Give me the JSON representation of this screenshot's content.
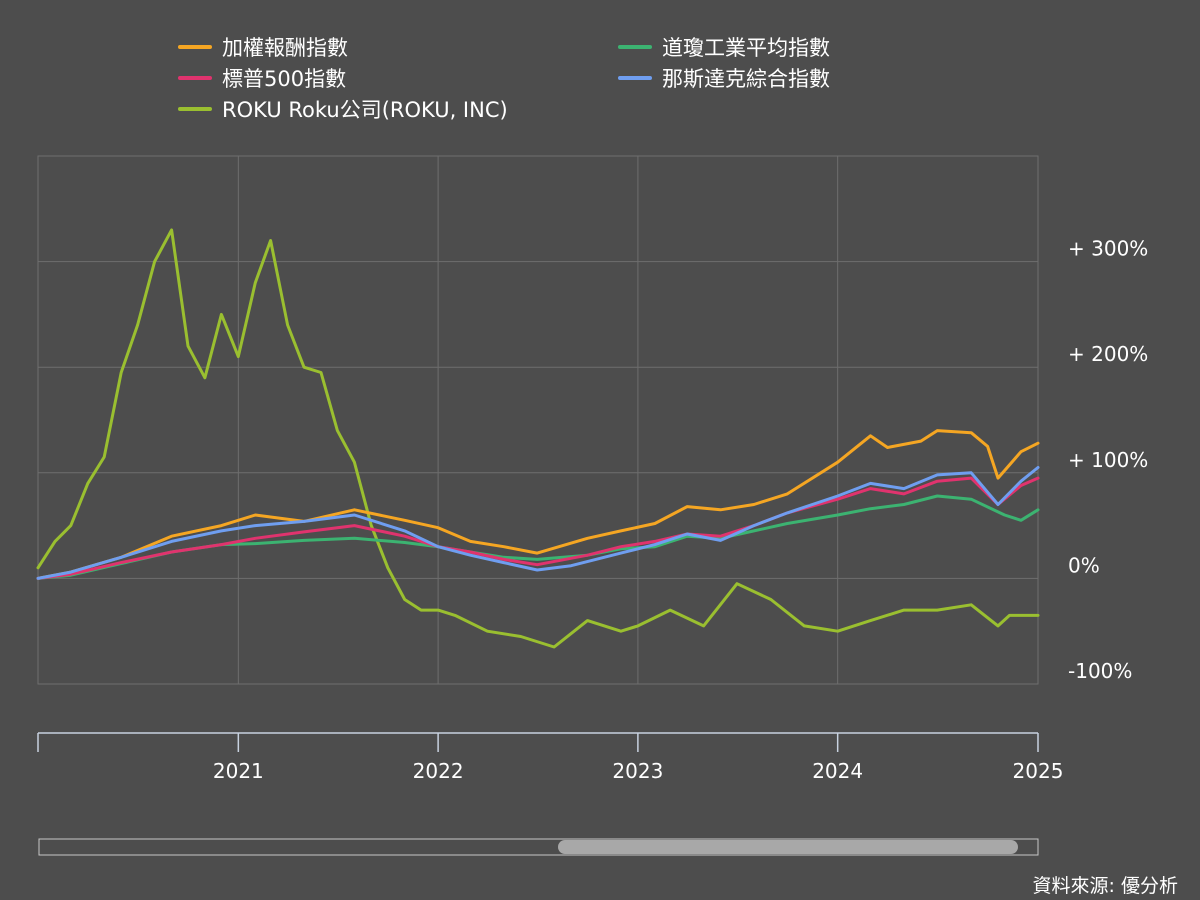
{
  "source_label": "資料來源: 優分析",
  "chart_data": {
    "type": "line",
    "x_range": [
      "2020-01-01",
      "2025-01-01"
    ],
    "x_ticks": [
      "2021",
      "2022",
      "2023",
      "2024",
      "2025"
    ],
    "y_ticks": [
      {
        "value": 300,
        "label": "+ 300%"
      },
      {
        "value": 200,
        "label": "+ 200%"
      },
      {
        "value": 100,
        "label": "+ 100%"
      },
      {
        "value": 0,
        "label": "0%"
      },
      {
        "value": -100,
        "label": "-100%"
      }
    ],
    "ylim": [
      -100,
      400
    ],
    "grid": true,
    "legend_position": "top",
    "scrollbar": {
      "start": 0.52,
      "end": 0.98
    },
    "series": [
      {
        "name": "加權報酬指數",
        "color": "#f5a623",
        "points": [
          [
            "2020-01-01",
            0
          ],
          [
            "2020-03-01",
            6
          ],
          [
            "2020-06-01",
            20
          ],
          [
            "2020-09-01",
            40
          ],
          [
            "2020-12-01",
            50
          ],
          [
            "2021-02-01",
            60
          ],
          [
            "2021-05-01",
            54
          ],
          [
            "2021-08-01",
            65
          ],
          [
            "2021-11-01",
            55
          ],
          [
            "2022-01-01",
            48
          ],
          [
            "2022-03-01",
            35
          ],
          [
            "2022-05-01",
            30
          ],
          [
            "2022-07-01",
            24
          ],
          [
            "2022-10-01",
            38
          ],
          [
            "2022-12-01",
            45
          ],
          [
            "2023-02-01",
            52
          ],
          [
            "2023-04-01",
            68
          ],
          [
            "2023-06-01",
            65
          ],
          [
            "2023-08-01",
            70
          ],
          [
            "2023-10-01",
            80
          ],
          [
            "2024-01-01",
            110
          ],
          [
            "2024-03-01",
            135
          ],
          [
            "2024-04-01",
            124
          ],
          [
            "2024-06-01",
            130
          ],
          [
            "2024-07-01",
            140
          ],
          [
            "2024-09-01",
            138
          ],
          [
            "2024-10-01",
            125
          ],
          [
            "2024-10-20",
            95
          ],
          [
            "2024-12-01",
            120
          ],
          [
            "2025-01-01",
            128
          ]
        ]
      },
      {
        "name": "道瓊工業平均指數",
        "color": "#3cb371",
        "points": [
          [
            "2020-01-01",
            0
          ],
          [
            "2020-03-01",
            3
          ],
          [
            "2020-06-01",
            14
          ],
          [
            "2020-09-01",
            25
          ],
          [
            "2020-12-01",
            32
          ],
          [
            "2021-02-01",
            33
          ],
          [
            "2021-05-01",
            36
          ],
          [
            "2021-08-01",
            38
          ],
          [
            "2021-11-01",
            34
          ],
          [
            "2022-01-01",
            30
          ],
          [
            "2022-03-01",
            25
          ],
          [
            "2022-05-01",
            20
          ],
          [
            "2022-07-01",
            18
          ],
          [
            "2022-10-01",
            22
          ],
          [
            "2022-12-01",
            28
          ],
          [
            "2023-02-01",
            30
          ],
          [
            "2023-04-01",
            40
          ],
          [
            "2023-06-01",
            38
          ],
          [
            "2023-08-01",
            45
          ],
          [
            "2023-10-01",
            52
          ],
          [
            "2024-01-01",
            60
          ],
          [
            "2024-03-01",
            66
          ],
          [
            "2024-05-01",
            70
          ],
          [
            "2024-07-01",
            78
          ],
          [
            "2024-09-01",
            75
          ],
          [
            "2024-11-01",
            60
          ],
          [
            "2024-12-01",
            55
          ],
          [
            "2025-01-01",
            65
          ]
        ]
      },
      {
        "name": "標普500指數",
        "color": "#e0336e",
        "points": [
          [
            "2020-01-01",
            0
          ],
          [
            "2020-03-01",
            4
          ],
          [
            "2020-06-01",
            15
          ],
          [
            "2020-09-01",
            25
          ],
          [
            "2020-12-01",
            32
          ],
          [
            "2021-02-01",
            38
          ],
          [
            "2021-05-01",
            44
          ],
          [
            "2021-08-01",
            50
          ],
          [
            "2021-11-01",
            40
          ],
          [
            "2022-01-01",
            30
          ],
          [
            "2022-03-01",
            25
          ],
          [
            "2022-05-01",
            18
          ],
          [
            "2022-07-01",
            13
          ],
          [
            "2022-10-01",
            22
          ],
          [
            "2022-12-01",
            30
          ],
          [
            "2023-02-01",
            35
          ],
          [
            "2023-04-01",
            42
          ],
          [
            "2023-06-01",
            40
          ],
          [
            "2023-08-01",
            50
          ],
          [
            "2023-10-01",
            62
          ],
          [
            "2024-01-01",
            75
          ],
          [
            "2024-03-01",
            85
          ],
          [
            "2024-05-01",
            80
          ],
          [
            "2024-07-01",
            92
          ],
          [
            "2024-09-01",
            95
          ],
          [
            "2024-10-20",
            70
          ],
          [
            "2024-12-01",
            88
          ],
          [
            "2025-01-01",
            95
          ]
        ]
      },
      {
        "name": "那斯達克綜合指數",
        "color": "#6f9ef0",
        "points": [
          [
            "2020-01-01",
            0
          ],
          [
            "2020-03-01",
            6
          ],
          [
            "2020-06-01",
            20
          ],
          [
            "2020-09-01",
            35
          ],
          [
            "2020-12-01",
            45
          ],
          [
            "2021-02-01",
            50
          ],
          [
            "2021-05-01",
            54
          ],
          [
            "2021-08-01",
            60
          ],
          [
            "2021-11-01",
            45
          ],
          [
            "2022-01-01",
            30
          ],
          [
            "2022-03-01",
            22
          ],
          [
            "2022-05-01",
            15
          ],
          [
            "2022-07-01",
            8
          ],
          [
            "2022-09-01",
            12
          ],
          [
            "2022-12-01",
            24
          ],
          [
            "2023-02-01",
            32
          ],
          [
            "2023-04-01",
            42
          ],
          [
            "2023-06-01",
            36
          ],
          [
            "2023-08-01",
            50
          ],
          [
            "2023-10-01",
            62
          ],
          [
            "2024-01-01",
            78
          ],
          [
            "2024-03-01",
            90
          ],
          [
            "2024-05-01",
            85
          ],
          [
            "2024-07-01",
            98
          ],
          [
            "2024-09-01",
            100
          ],
          [
            "2024-10-20",
            70
          ],
          [
            "2024-12-01",
            92
          ],
          [
            "2025-01-01",
            105
          ]
        ]
      },
      {
        "name": "ROKU Roku公司(ROKU, INC)",
        "color": "#9abf30",
        "points": [
          [
            "2020-01-01",
            10
          ],
          [
            "2020-02-01",
            35
          ],
          [
            "2020-03-01",
            50
          ],
          [
            "2020-04-01",
            90
          ],
          [
            "2020-05-01",
            115
          ],
          [
            "2020-06-01",
            195
          ],
          [
            "2020-07-01",
            240
          ],
          [
            "2020-08-01",
            300
          ],
          [
            "2020-09-01",
            330
          ],
          [
            "2020-10-01",
            220
          ],
          [
            "2020-11-01",
            190
          ],
          [
            "2020-12-01",
            250
          ],
          [
            "2021-01-01",
            210
          ],
          [
            "2021-02-01",
            280
          ],
          [
            "2021-03-01",
            320
          ],
          [
            "2021-04-01",
            240
          ],
          [
            "2021-05-01",
            200
          ],
          [
            "2021-06-01",
            195
          ],
          [
            "2021-07-01",
            140
          ],
          [
            "2021-08-01",
            110
          ],
          [
            "2021-09-01",
            50
          ],
          [
            "2021-10-01",
            10
          ],
          [
            "2021-11-01",
            -20
          ],
          [
            "2021-12-01",
            -30
          ],
          [
            "2022-01-01",
            -30
          ],
          [
            "2022-02-01",
            -35
          ],
          [
            "2022-04-01",
            -50
          ],
          [
            "2022-06-01",
            -55
          ],
          [
            "2022-08-01",
            -65
          ],
          [
            "2022-10-01",
            -40
          ],
          [
            "2022-12-01",
            -50
          ],
          [
            "2023-01-01",
            -45
          ],
          [
            "2023-03-01",
            -30
          ],
          [
            "2023-05-01",
            -45
          ],
          [
            "2023-07-01",
            -5
          ],
          [
            "2023-09-01",
            -20
          ],
          [
            "2023-11-01",
            -45
          ],
          [
            "2024-01-01",
            -50
          ],
          [
            "2024-03-01",
            -40
          ],
          [
            "2024-05-01",
            -30
          ],
          [
            "2024-07-01",
            -30
          ],
          [
            "2024-09-01",
            -25
          ],
          [
            "2024-10-20",
            -45
          ],
          [
            "2024-11-10",
            -35
          ],
          [
            "2025-01-01",
            -35
          ]
        ]
      }
    ]
  }
}
